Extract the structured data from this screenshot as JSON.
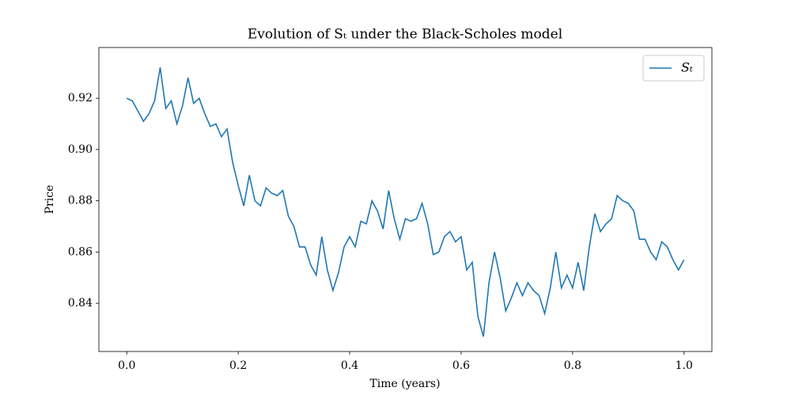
{
  "chart_data": {
    "type": "line",
    "title": "Evolution of Sₜ under the Black-Scholes model",
    "x_label": "Time (years)",
    "y_label": "Price",
    "x": [
      0,
      0.01,
      0.02,
      0.03,
      0.04,
      0.05,
      0.06,
      0.07,
      0.08,
      0.09,
      0.1,
      0.11,
      0.12,
      0.13,
      0.14,
      0.15,
      0.16,
      0.17,
      0.18,
      0.19,
      0.2,
      0.21,
      0.22,
      0.23,
      0.24,
      0.25,
      0.26,
      0.27,
      0.28,
      0.29,
      0.3,
      0.31,
      0.32,
      0.33,
      0.34,
      0.35,
      0.36,
      0.37,
      0.38,
      0.39,
      0.4,
      0.41,
      0.42,
      0.43,
      0.44,
      0.45,
      0.46,
      0.47,
      0.48,
      0.49,
      0.5,
      0.51,
      0.52,
      0.53,
      0.54,
      0.55,
      0.56,
      0.57,
      0.58,
      0.59,
      0.6,
      0.61,
      0.62,
      0.63,
      0.64,
      0.65,
      0.66,
      0.67,
      0.68,
      0.69,
      0.7,
      0.71,
      0.72,
      0.73,
      0.74,
      0.75,
      0.76,
      0.77,
      0.78,
      0.79,
      0.8,
      0.81,
      0.82,
      0.83,
      0.84,
      0.85,
      0.86,
      0.87,
      0.88,
      0.89,
      0.9,
      0.91,
      0.92,
      0.93,
      0.94,
      0.95,
      0.96,
      0.97,
      0.98,
      0.99,
      1
    ],
    "series": [
      {
        "name": "Sₜ",
        "color": "#1f77b4",
        "values": [
          0.92,
          0.919,
          0.915,
          0.911,
          0.914,
          0.919,
          0.932,
          0.916,
          0.919,
          0.91,
          0.917,
          0.928,
          0.918,
          0.92,
          0.914,
          0.909,
          0.91,
          0.905,
          0.908,
          0.895,
          0.886,
          0.878,
          0.89,
          0.88,
          0.878,
          0.885,
          0.883,
          0.882,
          0.884,
          0.874,
          0.87,
          0.862,
          0.862,
          0.855,
          0.851,
          0.866,
          0.853,
          0.845,
          0.852,
          0.862,
          0.866,
          0.862,
          0.872,
          0.871,
          0.88,
          0.876,
          0.869,
          0.884,
          0.873,
          0.865,
          0.873,
          0.872,
          0.873,
          0.879,
          0.871,
          0.859,
          0.86,
          0.866,
          0.868,
          0.864,
          0.866,
          0.853,
          0.856,
          0.835,
          0.827,
          0.848,
          0.86,
          0.85,
          0.837,
          0.842,
          0.848,
          0.843,
          0.848,
          0.845,
          0.843,
          0.836,
          0.846,
          0.86,
          0.846,
          0.851,
          0.846,
          0.856,
          0.845,
          0.862,
          0.875,
          0.868,
          0.871,
          0.873,
          0.882,
          0.88,
          0.879,
          0.876,
          0.865,
          0.865,
          0.86,
          0.857,
          0.864,
          0.862,
          0.857,
          0.853,
          0.857
        ]
      }
    ],
    "xlim": [
      -0.05,
      1.05
    ],
    "ylim": [
      0.8212,
      0.9398
    ],
    "xticks": [
      {
        "value": 0,
        "label": "0.0"
      },
      0.2,
      0.4,
      0.6,
      0.8,
      {
        "value": 1,
        "label": "1.0"
      }
    ],
    "yticks": [
      0.84,
      0.86,
      0.88,
      {
        "value": 0.9,
        "label": "0.90"
      },
      0.92
    ],
    "legend": "upper right"
  }
}
